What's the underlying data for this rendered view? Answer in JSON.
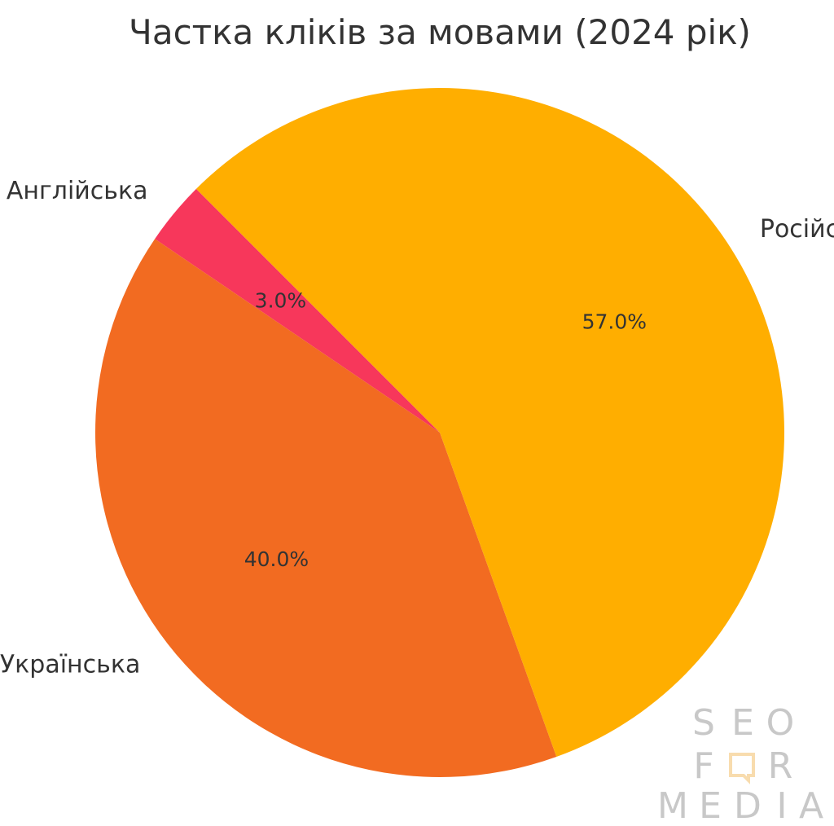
{
  "chart_data": {
    "type": "pie",
    "title": "Частка кліків за мовами (2024 рік)",
    "start_angle_deg": 135,
    "slices": [
      {
        "label": "Англійська",
        "value": 3.0,
        "pct_label": "3.0%",
        "color": "#f7375b"
      },
      {
        "label": "Українська",
        "value": 40.0,
        "pct_label": "40.0%",
        "color": "#f26b21"
      },
      {
        "label": "Російська",
        "value": 57.0,
        "pct_label": "57.0%",
        "color": "#ffae00"
      }
    ]
  },
  "watermark": {
    "row1": [
      "S",
      "E",
      "O"
    ],
    "row2": [
      "F",
      "R"
    ],
    "row3": [
      "M",
      "E",
      "D",
      "I",
      "A"
    ],
    "color": "#c8c8c8",
    "accent_color": "#f8dcae"
  }
}
